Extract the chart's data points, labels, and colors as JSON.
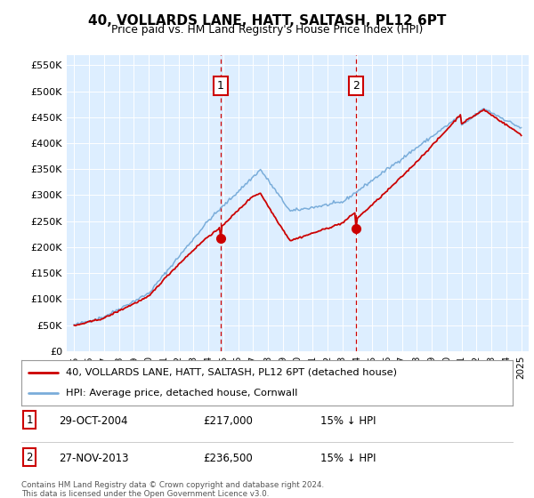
{
  "title": "40, VOLLARDS LANE, HATT, SALTASH, PL12 6PT",
  "subtitle": "Price paid vs. HM Land Registry's House Price Index (HPI)",
  "legend_line1": "40, VOLLARDS LANE, HATT, SALTASH, PL12 6PT (detached house)",
  "legend_line2": "HPI: Average price, detached house, Cornwall",
  "sale1_date": "29-OCT-2004",
  "sale1_price": 217000,
  "sale1_note": "15% ↓ HPI",
  "sale2_date": "27-NOV-2013",
  "sale2_price": 236500,
  "sale2_note": "15% ↓ HPI",
  "copyright": "Contains HM Land Registry data © Crown copyright and database right 2024.\nThis data is licensed under the Open Government Licence v3.0.",
  "hpi_color": "#7aadda",
  "price_color": "#cc0000",
  "marker_color": "#cc0000",
  "vline_color": "#cc0000",
  "bg_color": "#ddeeff",
  "ylim": [
    0,
    570000
  ],
  "yticks": [
    0,
    50000,
    100000,
    150000,
    200000,
    250000,
    300000,
    350000,
    400000,
    450000,
    500000,
    550000
  ],
  "sale1_year": 2004.83,
  "sale2_year": 2013.92,
  "xmin": 1994.5,
  "xmax": 2025.5
}
